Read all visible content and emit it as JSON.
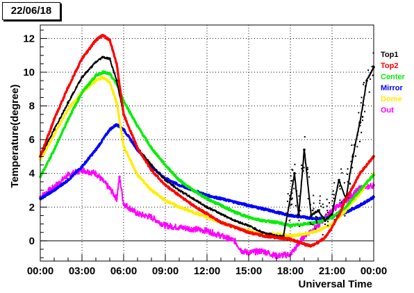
{
  "header": {
    "date": "22/06/18"
  },
  "chart_data": {
    "type": "scatter",
    "title": "22/06/18",
    "xlabel": "Universal Time",
    "ylabel": "Temperature(degree)",
    "xlim": [
      0,
      24
    ],
    "ylim": [
      -1.2,
      12.8
    ],
    "grid": true,
    "legend_position": "right",
    "xticks": [
      0,
      3,
      6,
      9,
      12,
      15,
      18,
      21,
      24
    ],
    "xtick_labels": [
      "00:00",
      "03:00",
      "06:00",
      "09:00",
      "12:00",
      "15:00",
      "18:00",
      "21:00",
      "00:00"
    ],
    "yticks": [
      0,
      2,
      4,
      6,
      8,
      10,
      12
    ],
    "ytick_labels": [
      "0",
      "2",
      "4",
      "6",
      "8",
      "10",
      "12"
    ],
    "series": [
      {
        "name": "Top1",
        "color": "#000000",
        "marker": "points",
        "x": [
          0,
          1,
          2,
          3,
          4,
          4.5,
          5,
          5.5,
          6,
          7,
          8,
          9,
          10,
          11,
          12,
          13,
          14,
          15,
          16,
          17,
          17.5,
          18,
          18.3,
          18.6,
          19,
          19.5,
          20,
          20.5,
          21,
          21.5,
          22,
          22.5,
          23,
          23.5,
          24
        ],
        "y": [
          5.0,
          6.6,
          8.2,
          9.7,
          10.6,
          10.9,
          10.8,
          9.5,
          7.5,
          5.5,
          4.5,
          3.6,
          3.0,
          2.5,
          2.0,
          1.6,
          1.2,
          0.9,
          0.5,
          0.3,
          0.3,
          2.5,
          4.0,
          1.5,
          5.4,
          1.5,
          1.8,
          1.2,
          1.6,
          3.6,
          2.5,
          5.0,
          7.0,
          9.5,
          10.3
        ]
      },
      {
        "name": "Top2",
        "color": "#ff0000",
        "marker": "points",
        "x": [
          0,
          1,
          2,
          3,
          4,
          4.5,
          5,
          5.5,
          6,
          7,
          8,
          9,
          10,
          11,
          12,
          13,
          14,
          15,
          16,
          17,
          18,
          19,
          19.5,
          20,
          20.5,
          21,
          21.5,
          22,
          22.5,
          23,
          23.5,
          24
        ],
        "y": [
          5.0,
          7.2,
          9.1,
          10.8,
          11.9,
          12.2,
          11.9,
          10.5,
          7.5,
          5.5,
          4.2,
          3.3,
          2.7,
          2.1,
          1.6,
          1.1,
          0.8,
          0.5,
          0.3,
          0.2,
          0.1,
          -0.2,
          -0.3,
          -0.1,
          0.2,
          0.8,
          1.5,
          2.5,
          3.2,
          4.0,
          4.5,
          5.0
        ]
      },
      {
        "name": "Center",
        "color": "#00ee00",
        "marker": "points",
        "x": [
          0,
          1,
          2,
          3,
          4,
          4.5,
          5,
          5.5,
          6,
          7,
          8,
          9,
          10,
          11,
          12,
          13,
          14,
          15,
          16,
          17,
          18,
          19,
          20,
          21,
          22,
          23,
          24
        ],
        "y": [
          3.8,
          5.4,
          7.2,
          8.8,
          9.8,
          10.0,
          9.9,
          9.3,
          8.3,
          6.8,
          5.5,
          4.5,
          3.6,
          3.0,
          2.5,
          2.1,
          1.7,
          1.4,
          1.2,
          1.1,
          0.9,
          1.0,
          1.1,
          1.4,
          2.0,
          3.0,
          3.9
        ]
      },
      {
        "name": "Mirror",
        "color": "#0000ff",
        "marker": "points",
        "x": [
          0,
          1,
          2,
          3,
          4,
          5,
          5.5,
          6,
          7,
          8,
          9,
          10,
          11,
          12,
          13,
          14,
          15,
          16,
          17,
          18,
          19,
          20,
          21,
          22,
          23,
          24
        ],
        "y": [
          2.5,
          3.0,
          3.6,
          4.4,
          5.4,
          6.6,
          6.9,
          6.6,
          5.4,
          4.4,
          3.7,
          3.3,
          3.0,
          2.7,
          2.5,
          2.3,
          2.1,
          1.9,
          1.7,
          1.5,
          1.4,
          1.3,
          1.4,
          1.7,
          2.1,
          2.6
        ]
      },
      {
        "name": "Dome",
        "color": "#ffee00",
        "marker": "points",
        "x": [
          0,
          1,
          2,
          3,
          4,
          4.5,
          5,
          5.5,
          6,
          7,
          8,
          9,
          10,
          11,
          12,
          13,
          14,
          15,
          16,
          17,
          18,
          19,
          20,
          21,
          22,
          23,
          24
        ],
        "y": [
          4.8,
          6.3,
          7.8,
          8.8,
          9.5,
          9.7,
          9.4,
          8.2,
          5.6,
          3.9,
          3.0,
          2.4,
          2.0,
          1.7,
          1.4,
          1.1,
          0.8,
          0.6,
          0.4,
          0.4,
          0.3,
          0.4,
          0.6,
          1.0,
          1.8,
          2.8,
          4.0
        ]
      },
      {
        "name": "Out",
        "color": "#ff00ff",
        "marker": "points",
        "x": [
          0,
          1,
          2,
          3,
          4,
          5,
          5.5,
          5.7,
          6,
          6.5,
          7,
          8,
          9,
          10,
          11,
          12,
          13,
          14,
          14.5,
          15,
          16,
          17,
          18,
          18.5,
          19,
          20,
          21,
          22,
          23,
          24
        ],
        "y": [
          2.6,
          3.2,
          3.9,
          4.2,
          4.0,
          3.1,
          2.5,
          3.8,
          2.2,
          1.9,
          1.6,
          1.4,
          0.9,
          0.8,
          0.7,
          0.6,
          0.3,
          0.0,
          -0.6,
          -0.7,
          -0.6,
          -0.9,
          -0.8,
          -0.3,
          0.3,
          0.9,
          1.8,
          2.4,
          3.1,
          3.3
        ]
      }
    ]
  }
}
